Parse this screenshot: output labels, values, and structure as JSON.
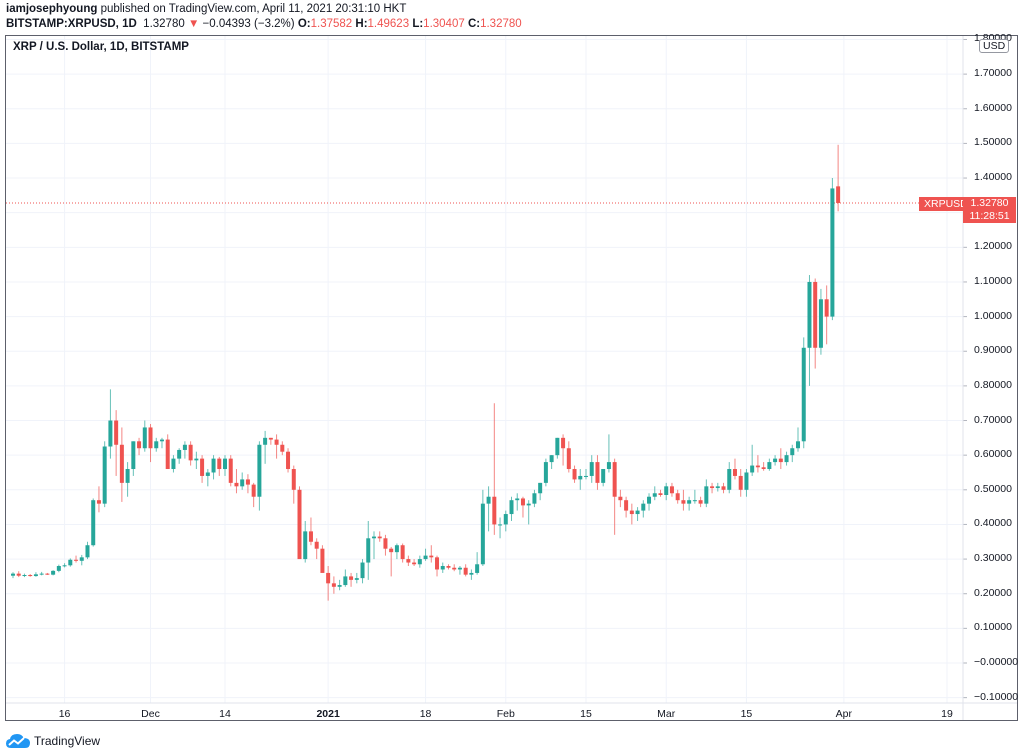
{
  "header": {
    "author": "iamjosephyoung",
    "published_text": " published on TradingView.com, April 11, 2021 20:31:10 HKT",
    "symbol": "BITSTAMP:XRPUSD, 1D",
    "last": "1.32780",
    "down_arrow": "▼",
    "change": "−0.04393 (−3.2%)",
    "o_label": "O:",
    "o_value": "1.37582",
    "h_label": "H:",
    "h_value": "1.49623",
    "l_label": "L:",
    "l_value": "1.30407",
    "c_label": "C:",
    "c_value": "1.32780"
  },
  "chart_title": "XRP / U.S. Dollar, 1D, BITSTAMP",
  "currency_badge": "USD",
  "last_price_tag": {
    "symbol": "XRPUSD",
    "price": "1.32780",
    "countdown": "11:28:51"
  },
  "footer": {
    "brand": "TradingView"
  },
  "colors": {
    "up": "#26a69a",
    "down": "#ef5350",
    "grid": "#f0f3fa",
    "axis_text": "#131722"
  },
  "chart_data": {
    "type": "candlestick",
    "title": "XRP / U.S. Dollar, 1D, BITSTAMP",
    "xlabel": "",
    "ylabel": "USD",
    "ylim": [
      -0.12,
      1.81
    ],
    "grid": true,
    "y_ticks": [
      "1.80000",
      "1.70000",
      "1.60000",
      "1.50000",
      "1.40000",
      "1.30000",
      "1.20000",
      "1.10000",
      "1.00000",
      "0.90000",
      "0.80000",
      "0.70000",
      "0.60000",
      "0.50000",
      "0.40000",
      "0.30000",
      "0.20000",
      "0.10000",
      "−0.00000",
      "−0.10000"
    ],
    "x_ticks": [
      {
        "label": "16",
        "day": 9
      },
      {
        "label": "Dec",
        "day": 24
      },
      {
        "label": "14",
        "day": 37
      },
      {
        "label": "2021",
        "day": 55,
        "bold": true
      },
      {
        "label": "18",
        "day": 72
      },
      {
        "label": "Feb",
        "day": 86
      },
      {
        "label": "15",
        "day": 100
      },
      {
        "label": "Mar",
        "day": 114
      },
      {
        "label": "15",
        "day": 128
      },
      {
        "label": "Apr",
        "day": 145
      },
      {
        "label": "19",
        "day": 163
      }
    ],
    "start_date": "2020-11-07",
    "last_price": 1.3278,
    "candles": [
      [
        0.252,
        0.262,
        0.245,
        0.258
      ],
      [
        0.258,
        0.265,
        0.248,
        0.252
      ],
      [
        0.252,
        0.258,
        0.248,
        0.254
      ],
      [
        0.254,
        0.257,
        0.249,
        0.251
      ],
      [
        0.251,
        0.262,
        0.249,
        0.256
      ],
      [
        0.256,
        0.263,
        0.253,
        0.258
      ],
      [
        0.258,
        0.26,
        0.254,
        0.255
      ],
      [
        0.255,
        0.268,
        0.253,
        0.266
      ],
      [
        0.266,
        0.284,
        0.262,
        0.28
      ],
      [
        0.28,
        0.288,
        0.276,
        0.282
      ],
      [
        0.282,
        0.302,
        0.278,
        0.298
      ],
      [
        0.298,
        0.31,
        0.29,
        0.295
      ],
      [
        0.295,
        0.312,
        0.282,
        0.305
      ],
      [
        0.305,
        0.35,
        0.3,
        0.34
      ],
      [
        0.34,
        0.475,
        0.336,
        0.47
      ],
      [
        0.47,
        0.51,
        0.435,
        0.46
      ],
      [
        0.46,
        0.64,
        0.45,
        0.625
      ],
      [
        0.625,
        0.79,
        0.59,
        0.7
      ],
      [
        0.7,
        0.73,
        0.54,
        0.63
      ],
      [
        0.63,
        0.68,
        0.465,
        0.52
      ],
      [
        0.52,
        0.58,
        0.48,
        0.56
      ],
      [
        0.56,
        0.64,
        0.54,
        0.64
      ],
      [
        0.64,
        0.65,
        0.6,
        0.62
      ],
      [
        0.62,
        0.7,
        0.61,
        0.68
      ],
      [
        0.68,
        0.69,
        0.58,
        0.62
      ],
      [
        0.62,
        0.65,
        0.61,
        0.64
      ],
      [
        0.64,
        0.65,
        0.62,
        0.645
      ],
      [
        0.645,
        0.66,
        0.56,
        0.56
      ],
      [
        0.56,
        0.6,
        0.55,
        0.59
      ],
      [
        0.59,
        0.62,
        0.575,
        0.615
      ],
      [
        0.615,
        0.64,
        0.59,
        0.63
      ],
      [
        0.63,
        0.64,
        0.57,
        0.585
      ],
      [
        0.585,
        0.61,
        0.56,
        0.59
      ],
      [
        0.59,
        0.6,
        0.52,
        0.54
      ],
      [
        0.54,
        0.56,
        0.51,
        0.55
      ],
      [
        0.55,
        0.6,
        0.53,
        0.59
      ],
      [
        0.59,
        0.595,
        0.54,
        0.56
      ],
      [
        0.56,
        0.6,
        0.54,
        0.59
      ],
      [
        0.59,
        0.6,
        0.51,
        0.52
      ],
      [
        0.52,
        0.56,
        0.49,
        0.51
      ],
      [
        0.51,
        0.55,
        0.5,
        0.53
      ],
      [
        0.53,
        0.545,
        0.49,
        0.515
      ],
      [
        0.515,
        0.52,
        0.45,
        0.48
      ],
      [
        0.48,
        0.64,
        0.44,
        0.63
      ],
      [
        0.63,
        0.67,
        0.575,
        0.65
      ],
      [
        0.65,
        0.65,
        0.63,
        0.645
      ],
      [
        0.645,
        0.66,
        0.59,
        0.63
      ],
      [
        0.63,
        0.64,
        0.6,
        0.61
      ],
      [
        0.61,
        0.62,
        0.55,
        0.56
      ],
      [
        0.56,
        0.57,
        0.46,
        0.5
      ],
      [
        0.5,
        0.51,
        0.31,
        0.3
      ],
      [
        0.3,
        0.41,
        0.29,
        0.38
      ],
      [
        0.38,
        0.42,
        0.34,
        0.35
      ],
      [
        0.35,
        0.36,
        0.3,
        0.33
      ],
      [
        0.33,
        0.34,
        0.28,
        0.26
      ],
      [
        0.26,
        0.28,
        0.18,
        0.23
      ],
      [
        0.23,
        0.25,
        0.2,
        0.22
      ],
      [
        0.22,
        0.24,
        0.21,
        0.225
      ],
      [
        0.225,
        0.27,
        0.22,
        0.25
      ],
      [
        0.25,
        0.26,
        0.22,
        0.24
      ],
      [
        0.24,
        0.26,
        0.23,
        0.245
      ],
      [
        0.245,
        0.3,
        0.23,
        0.29
      ],
      [
        0.29,
        0.41,
        0.24,
        0.36
      ],
      [
        0.36,
        0.38,
        0.3,
        0.365
      ],
      [
        0.365,
        0.38,
        0.35,
        0.36
      ],
      [
        0.36,
        0.37,
        0.31,
        0.33
      ],
      [
        0.33,
        0.335,
        0.25,
        0.32
      ],
      [
        0.32,
        0.345,
        0.3,
        0.34
      ],
      [
        0.34,
        0.345,
        0.29,
        0.3
      ],
      [
        0.3,
        0.31,
        0.28,
        0.29
      ],
      [
        0.29,
        0.3,
        0.28,
        0.285
      ],
      [
        0.285,
        0.31,
        0.275,
        0.3
      ],
      [
        0.3,
        0.33,
        0.295,
        0.31
      ],
      [
        0.31,
        0.34,
        0.29,
        0.305
      ],
      [
        0.305,
        0.31,
        0.25,
        0.27
      ],
      [
        0.27,
        0.29,
        0.26,
        0.28
      ],
      [
        0.28,
        0.285,
        0.27,
        0.275
      ],
      [
        0.275,
        0.285,
        0.265,
        0.27
      ],
      [
        0.27,
        0.28,
        0.255,
        0.275
      ],
      [
        0.275,
        0.285,
        0.25,
        0.255
      ],
      [
        0.255,
        0.27,
        0.24,
        0.26
      ],
      [
        0.26,
        0.32,
        0.255,
        0.285
      ],
      [
        0.285,
        0.5,
        0.28,
        0.46
      ],
      [
        0.46,
        0.51,
        0.38,
        0.48
      ],
      [
        0.48,
        0.75,
        0.37,
        0.4
      ],
      [
        0.4,
        0.42,
        0.36,
        0.4
      ],
      [
        0.4,
        0.44,
        0.38,
        0.43
      ],
      [
        0.43,
        0.48,
        0.41,
        0.47
      ],
      [
        0.47,
        0.49,
        0.44,
        0.475
      ],
      [
        0.475,
        0.48,
        0.42,
        0.455
      ],
      [
        0.455,
        0.47,
        0.4,
        0.46
      ],
      [
        0.46,
        0.5,
        0.45,
        0.49
      ],
      [
        0.49,
        0.52,
        0.47,
        0.52
      ],
      [
        0.52,
        0.59,
        0.51,
        0.58
      ],
      [
        0.58,
        0.6,
        0.56,
        0.6
      ],
      [
        0.6,
        0.65,
        0.59,
        0.65
      ],
      [
        0.65,
        0.66,
        0.57,
        0.62
      ],
      [
        0.62,
        0.64,
        0.55,
        0.56
      ],
      [
        0.56,
        0.57,
        0.52,
        0.53
      ],
      [
        0.53,
        0.56,
        0.5,
        0.54
      ],
      [
        0.54,
        0.56,
        0.53,
        0.54
      ],
      [
        0.54,
        0.6,
        0.52,
        0.58
      ],
      [
        0.58,
        0.6,
        0.5,
        0.52
      ],
      [
        0.52,
        0.56,
        0.51,
        0.56
      ],
      [
        0.56,
        0.66,
        0.55,
        0.58
      ],
      [
        0.58,
        0.59,
        0.37,
        0.48
      ],
      [
        0.48,
        0.5,
        0.45,
        0.47
      ],
      [
        0.47,
        0.48,
        0.42,
        0.44
      ],
      [
        0.44,
        0.46,
        0.4,
        0.43
      ],
      [
        0.43,
        0.45,
        0.41,
        0.44
      ],
      [
        0.44,
        0.47,
        0.42,
        0.46
      ],
      [
        0.46,
        0.49,
        0.44,
        0.48
      ],
      [
        0.48,
        0.51,
        0.47,
        0.49
      ],
      [
        0.49,
        0.5,
        0.48,
        0.485
      ],
      [
        0.485,
        0.52,
        0.47,
        0.51
      ],
      [
        0.51,
        0.52,
        0.48,
        0.49
      ],
      [
        0.49,
        0.5,
        0.46,
        0.47
      ],
      [
        0.47,
        0.5,
        0.44,
        0.46
      ],
      [
        0.46,
        0.48,
        0.44,
        0.47
      ],
      [
        0.47,
        0.5,
        0.46,
        0.47
      ],
      [
        0.47,
        0.48,
        0.45,
        0.46
      ],
      [
        0.46,
        0.53,
        0.45,
        0.51
      ],
      [
        0.51,
        0.52,
        0.49,
        0.505
      ],
      [
        0.505,
        0.52,
        0.495,
        0.51
      ],
      [
        0.51,
        0.52,
        0.49,
        0.5
      ],
      [
        0.5,
        0.58,
        0.49,
        0.56
      ],
      [
        0.56,
        0.59,
        0.53,
        0.54
      ],
      [
        0.54,
        0.56,
        0.48,
        0.5
      ],
      [
        0.5,
        0.56,
        0.48,
        0.55
      ],
      [
        0.55,
        0.63,
        0.54,
        0.57
      ],
      [
        0.57,
        0.6,
        0.55,
        0.565
      ],
      [
        0.565,
        0.58,
        0.555,
        0.56
      ],
      [
        0.56,
        0.59,
        0.555,
        0.58
      ],
      [
        0.58,
        0.6,
        0.57,
        0.59
      ],
      [
        0.59,
        0.62,
        0.56,
        0.58
      ],
      [
        0.58,
        0.61,
        0.57,
        0.6
      ],
      [
        0.6,
        0.63,
        0.58,
        0.62
      ],
      [
        0.62,
        0.68,
        0.61,
        0.64
      ],
      [
        0.64,
        0.94,
        0.62,
        0.91
      ],
      [
        0.91,
        1.12,
        0.8,
        1.1
      ],
      [
        1.1,
        1.11,
        0.85,
        0.91
      ],
      [
        0.91,
        1.08,
        0.89,
        1.05
      ],
      [
        1.05,
        1.09,
        0.92,
        1.0
      ],
      [
        1.0,
        1.4,
        0.99,
        1.37
      ],
      [
        1.376,
        1.496,
        1.304,
        1.328
      ]
    ]
  }
}
